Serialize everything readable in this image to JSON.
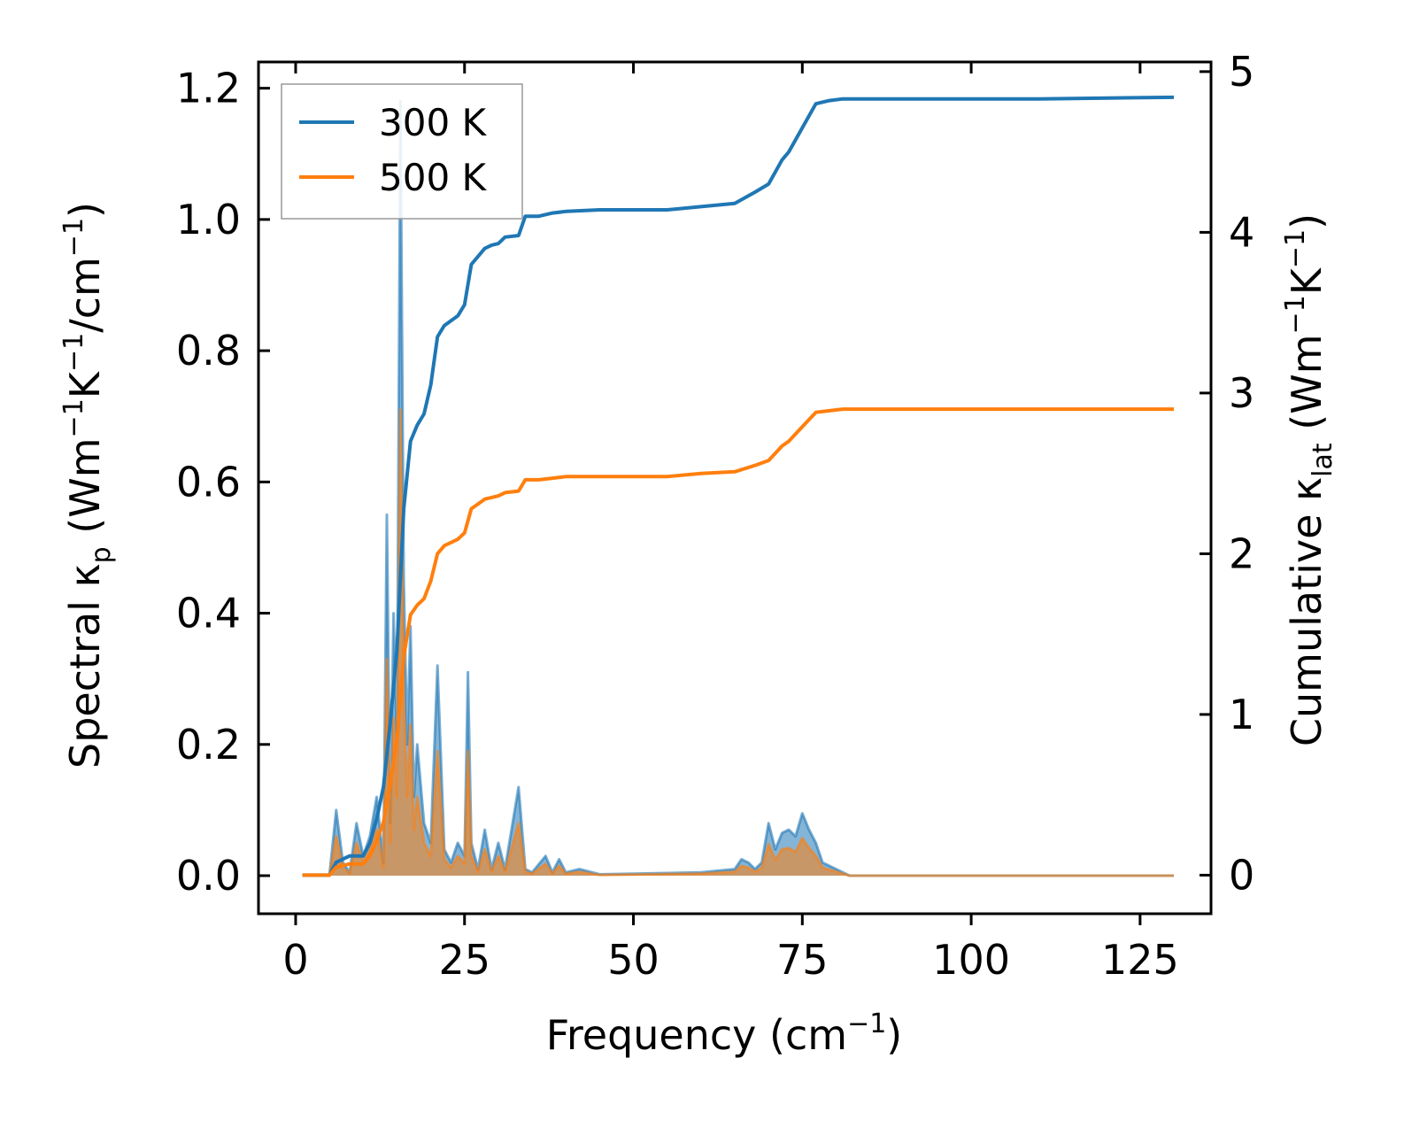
{
  "chart_data": {
    "type": "line",
    "xlabel_main": "Frequency (cm",
    "xlabel_sup": "−1",
    "xlabel_end": ")",
    "ylabel_left": {
      "a": "Spectral κ",
      "sub": "p",
      "b": " (Wm",
      "sup1": "−1",
      "c": "K",
      "sup2": "−1",
      "d": "/cm",
      "sup3": "−1",
      "e": ")"
    },
    "ylabel_right": {
      "a": "Cumulative κ",
      "sub": "lat",
      "b": " (Wm",
      "sup1": "−1",
      "c": "K",
      "sup2": "−1",
      "d": ")"
    },
    "xlim": [
      -5.5,
      135.5
    ],
    "ylim_left": [
      -0.058,
      1.24
    ],
    "ylim_right": [
      -0.24,
      5.06
    ],
    "xticks": [
      0,
      25,
      50,
      75,
      100,
      125
    ],
    "xtick_labels": [
      "0",
      "25",
      "50",
      "75",
      "100",
      "125"
    ],
    "yticks_left": [
      0.0,
      0.2,
      0.4,
      0.6,
      0.8,
      1.0,
      1.2
    ],
    "ytick_labels_left": [
      "0.0",
      "0.2",
      "0.4",
      "0.6",
      "0.8",
      "1.0",
      "1.2"
    ],
    "yticks_right": [
      0,
      1,
      2,
      3,
      4,
      5
    ],
    "ytick_labels_right": [
      "0",
      "1",
      "2",
      "3",
      "4",
      "5"
    ],
    "legend": {
      "placement": "top-left",
      "entries": [
        {
          "label": "300 K",
          "color": "#1f77b4"
        },
        {
          "label": "500 K",
          "color": "#ff7f0e"
        }
      ]
    },
    "spectral_series": [
      {
        "name": "300 K",
        "color": "#1f77b4",
        "points": [
          [
            1,
            0
          ],
          [
            5,
            0
          ],
          [
            6,
            0.1
          ],
          [
            7,
            0.02
          ],
          [
            8,
            0.005
          ],
          [
            9,
            0.08
          ],
          [
            10,
            0.03
          ],
          [
            11,
            0.06
          ],
          [
            12,
            0.12
          ],
          [
            13,
            0.02
          ],
          [
            13.5,
            0.55
          ],
          [
            14,
            0.08
          ],
          [
            14.5,
            0.4
          ],
          [
            15,
            0.2
          ],
          [
            15.5,
            1.18
          ],
          [
            16,
            0.45
          ],
          [
            16.5,
            0.2
          ],
          [
            17,
            0.38
          ],
          [
            17.5,
            0.12
          ],
          [
            18,
            0.2
          ],
          [
            19,
            0.08
          ],
          [
            20,
            0.05
          ],
          [
            21,
            0.32
          ],
          [
            22,
            0.04
          ],
          [
            23,
            0.02
          ],
          [
            24,
            0.05
          ],
          [
            25,
            0.03
          ],
          [
            25.5,
            0.31
          ],
          [
            26,
            0.05
          ],
          [
            27,
            0.01
          ],
          [
            28,
            0.07
          ],
          [
            29,
            0.01
          ],
          [
            30,
            0.05
          ],
          [
            31,
            0.01
          ],
          [
            33,
            0.135
          ],
          [
            34,
            0.01
          ],
          [
            35,
            0.005
          ],
          [
            37,
            0.03
          ],
          [
            38,
            0.005
          ],
          [
            39,
            0.025
          ],
          [
            40,
            0.005
          ],
          [
            42,
            0.01
          ],
          [
            45,
            0.002
          ],
          [
            60,
            0.005
          ],
          [
            65,
            0.01
          ],
          [
            66,
            0.025
          ],
          [
            67,
            0.02
          ],
          [
            68,
            0.01
          ],
          [
            69,
            0.02
          ],
          [
            70,
            0.08
          ],
          [
            71,
            0.04
          ],
          [
            72,
            0.065
          ],
          [
            73,
            0.07
          ],
          [
            74,
            0.06
          ],
          [
            75,
            0.095
          ],
          [
            76,
            0.07
          ],
          [
            77,
            0.05
          ],
          [
            78,
            0.02
          ],
          [
            79,
            0.015
          ],
          [
            80,
            0.01
          ],
          [
            82,
            0
          ],
          [
            110,
            0
          ],
          [
            130,
            0
          ]
        ]
      },
      {
        "name": "500 K",
        "color": "#ff7f0e",
        "points": [
          [
            1,
            0
          ],
          [
            5,
            0
          ],
          [
            6,
            0.06
          ],
          [
            7,
            0.012
          ],
          [
            8,
            0.003
          ],
          [
            9,
            0.05
          ],
          [
            10,
            0.02
          ],
          [
            11,
            0.04
          ],
          [
            12,
            0.07
          ],
          [
            13,
            0.012
          ],
          [
            13.5,
            0.33
          ],
          [
            14,
            0.05
          ],
          [
            14.5,
            0.24
          ],
          [
            15,
            0.12
          ],
          [
            15.5,
            0.71
          ],
          [
            16,
            0.27
          ],
          [
            16.5,
            0.12
          ],
          [
            17,
            0.23
          ],
          [
            17.5,
            0.07
          ],
          [
            18,
            0.12
          ],
          [
            19,
            0.05
          ],
          [
            20,
            0.03
          ],
          [
            21,
            0.19
          ],
          [
            22,
            0.025
          ],
          [
            23,
            0.012
          ],
          [
            24,
            0.03
          ],
          [
            25,
            0.018
          ],
          [
            25.5,
            0.19
          ],
          [
            26,
            0.03
          ],
          [
            27,
            0.006
          ],
          [
            28,
            0.04
          ],
          [
            29,
            0.006
          ],
          [
            30,
            0.03
          ],
          [
            31,
            0.006
          ],
          [
            33,
            0.08
          ],
          [
            34,
            0.006
          ],
          [
            35,
            0.003
          ],
          [
            37,
            0.018
          ],
          [
            38,
            0.003
          ],
          [
            39,
            0.015
          ],
          [
            40,
            0.003
          ],
          [
            42,
            0.006
          ],
          [
            45,
            0.001
          ],
          [
            60,
            0.003
          ],
          [
            65,
            0.006
          ],
          [
            66,
            0.015
          ],
          [
            67,
            0.012
          ],
          [
            68,
            0.006
          ],
          [
            69,
            0.012
          ],
          [
            70,
            0.048
          ],
          [
            71,
            0.024
          ],
          [
            72,
            0.04
          ],
          [
            73,
            0.042
          ],
          [
            74,
            0.036
          ],
          [
            75,
            0.057
          ],
          [
            76,
            0.042
          ],
          [
            77,
            0.03
          ],
          [
            78,
            0.012
          ],
          [
            79,
            0.009
          ],
          [
            80,
            0.006
          ],
          [
            82,
            0
          ],
          [
            110,
            0
          ],
          [
            130,
            0
          ]
        ]
      }
    ],
    "cumulative_series": [
      {
        "name": "300 K",
        "color": "#1f77b4",
        "points": [
          [
            1,
            0
          ],
          [
            5,
            0
          ],
          [
            6,
            0.08
          ],
          [
            8,
            0.12
          ],
          [
            10,
            0.12
          ],
          [
            11,
            0.2
          ],
          [
            12,
            0.35
          ],
          [
            13,
            0.55
          ],
          [
            14,
            0.95
          ],
          [
            15,
            1.4
          ],
          [
            16,
            2.28
          ],
          [
            17,
            2.7
          ],
          [
            18,
            2.8
          ],
          [
            19,
            2.87
          ],
          [
            20,
            3.05
          ],
          [
            21,
            3.35
          ],
          [
            22,
            3.42
          ],
          [
            24,
            3.48
          ],
          [
            25,
            3.55
          ],
          [
            26,
            3.8
          ],
          [
            27,
            3.85
          ],
          [
            28,
            3.9
          ],
          [
            29,
            3.92
          ],
          [
            30,
            3.93
          ],
          [
            31,
            3.97
          ],
          [
            33,
            3.98
          ],
          [
            34,
            4.1
          ],
          [
            36,
            4.1
          ],
          [
            38,
            4.12
          ],
          [
            40,
            4.13
          ],
          [
            45,
            4.14
          ],
          [
            55,
            4.14
          ],
          [
            60,
            4.16
          ],
          [
            65,
            4.18
          ],
          [
            68,
            4.25
          ],
          [
            70,
            4.3
          ],
          [
            72,
            4.45
          ],
          [
            73,
            4.5
          ],
          [
            75,
            4.65
          ],
          [
            77,
            4.8
          ],
          [
            79,
            4.82
          ],
          [
            81,
            4.83
          ],
          [
            90,
            4.83
          ],
          [
            110,
            4.83
          ],
          [
            130,
            4.84
          ]
        ]
      },
      {
        "name": "500 K",
        "color": "#ff7f0e",
        "points": [
          [
            1,
            0
          ],
          [
            5,
            0
          ],
          [
            6,
            0.05
          ],
          [
            8,
            0.07
          ],
          [
            10,
            0.07
          ],
          [
            11,
            0.12
          ],
          [
            12,
            0.21
          ],
          [
            13,
            0.33
          ],
          [
            14,
            0.57
          ],
          [
            15,
            0.84
          ],
          [
            16,
            1.36
          ],
          [
            17,
            1.62
          ],
          [
            18,
            1.68
          ],
          [
            19,
            1.72
          ],
          [
            20,
            1.83
          ],
          [
            21,
            2.0
          ],
          [
            22,
            2.05
          ],
          [
            24,
            2.09
          ],
          [
            25,
            2.13
          ],
          [
            26,
            2.28
          ],
          [
            27,
            2.31
          ],
          [
            28,
            2.34
          ],
          [
            29,
            2.35
          ],
          [
            30,
            2.36
          ],
          [
            31,
            2.38
          ],
          [
            33,
            2.39
          ],
          [
            34,
            2.46
          ],
          [
            36,
            2.46
          ],
          [
            38,
            2.47
          ],
          [
            40,
            2.48
          ],
          [
            45,
            2.48
          ],
          [
            55,
            2.48
          ],
          [
            60,
            2.5
          ],
          [
            65,
            2.51
          ],
          [
            68,
            2.55
          ],
          [
            70,
            2.58
          ],
          [
            72,
            2.67
          ],
          [
            73,
            2.7
          ],
          [
            75,
            2.79
          ],
          [
            77,
            2.88
          ],
          [
            79,
            2.89
          ],
          [
            81,
            2.9
          ],
          [
            90,
            2.9
          ],
          [
            110,
            2.9
          ],
          [
            130,
            2.9
          ]
        ]
      }
    ]
  }
}
